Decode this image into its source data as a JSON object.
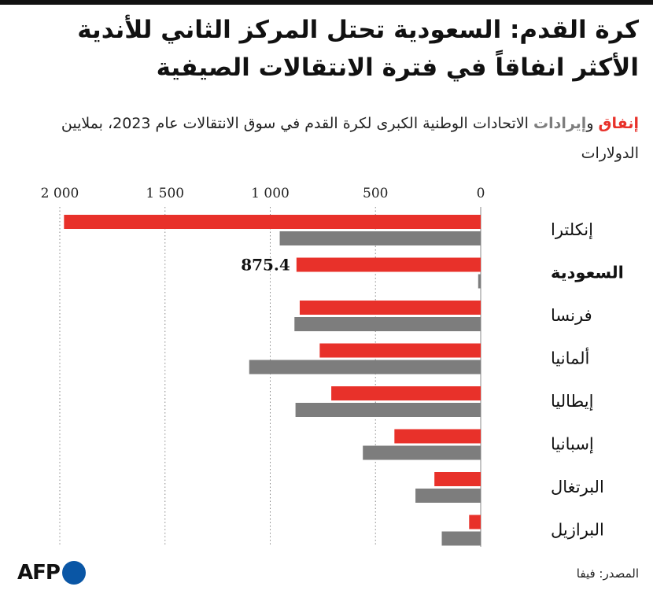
{
  "title": "كرة القدم: السعودية تحتل المركز الثاني للأندية الأكثر انفاقاً في فترة الانتقالات الصيفية",
  "subtitle": {
    "spend_word": "إنفاق",
    "connector": " و",
    "income_word": "إيرادات",
    "rest": " الاتحادات الوطنية الكبرى لكرة القدم في سوق الانتقالات عام 2023، بملايين الدولارات"
  },
  "source": "المصدر: فيفا",
  "logo": {
    "text": "AFP"
  },
  "colors": {
    "spend": "#e8312a",
    "income": "#7d7d7d",
    "grid": "#888888"
  },
  "chart_data": {
    "type": "bar",
    "orientation": "horizontal",
    "x_direction": "right-to-left",
    "categories": [
      "إنكلترا",
      "السعودية",
      "فرنسا",
      "ألمانيا",
      "إيطاليا",
      "إسبانيا",
      "البرتغال",
      "البرازيل"
    ],
    "series": [
      {
        "name": "إنفاق",
        "color": "#e8312a",
        "values": [
          1980,
          875.4,
          860,
          765,
          710,
          410,
          220,
          55
        ]
      },
      {
        "name": "إيرادات",
        "color": "#7d7d7d",
        "values": [
          955,
          12,
          885,
          1100,
          880,
          560,
          310,
          185
        ]
      }
    ],
    "xticks": [
      0,
      500,
      1000,
      1500,
      2000
    ],
    "xtick_labels": [
      "0",
      "500",
      "1 000",
      "1 500",
      "2 000"
    ],
    "xlim": [
      0,
      2000
    ],
    "grid": true,
    "annotations": [
      {
        "category": "السعودية",
        "series": "إنفاق",
        "text": "875.4"
      }
    ],
    "highlight_category": "السعودية"
  }
}
